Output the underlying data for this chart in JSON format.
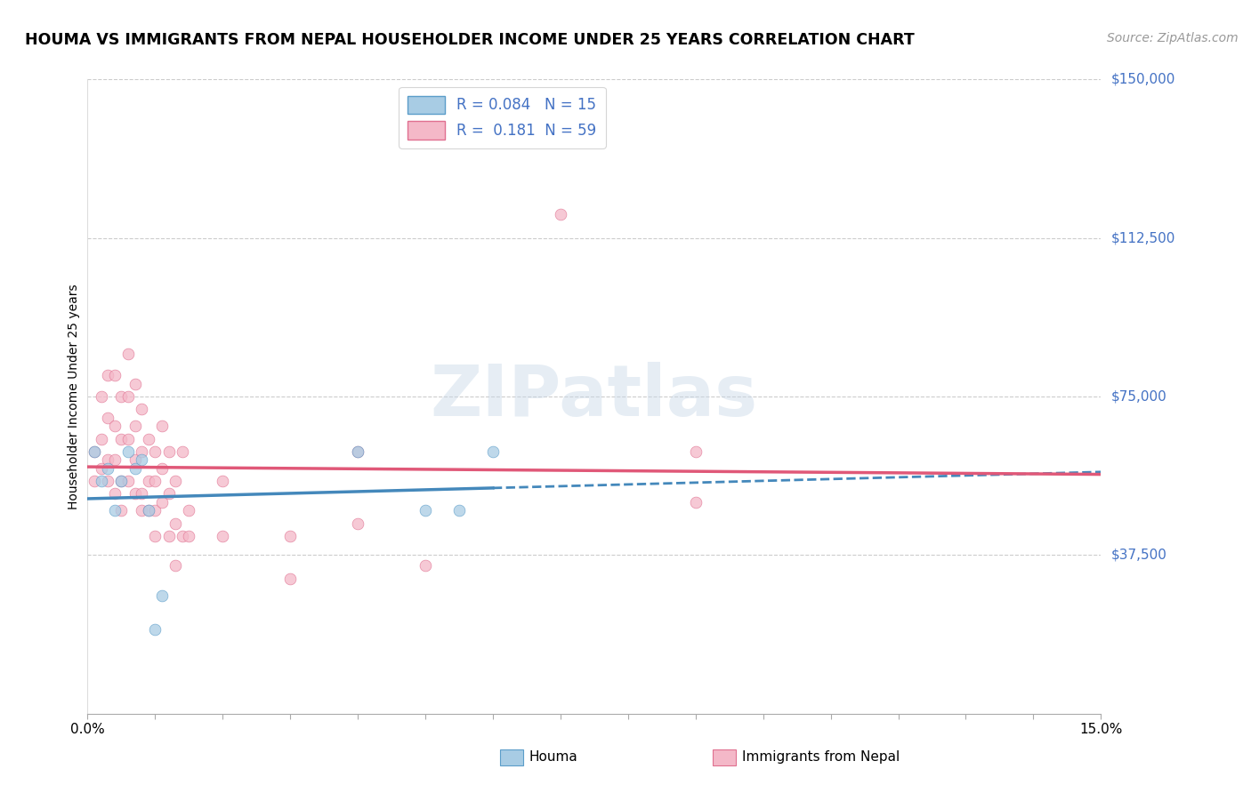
{
  "title": "HOUMA VS IMMIGRANTS FROM NEPAL HOUSEHOLDER INCOME UNDER 25 YEARS CORRELATION CHART",
  "source": "Source: ZipAtlas.com",
  "ylabel": "Householder Income Under 25 years",
  "xlabel_houma": "Houma",
  "xlabel_nepal": "Immigrants from Nepal",
  "xlim": [
    0.0,
    0.15
  ],
  "ylim": [
    0,
    150000
  ],
  "r_houma": 0.084,
  "n_houma": 15,
  "r_nepal": 0.181,
  "n_nepal": 59,
  "houma_color": "#a8cce4",
  "nepal_color": "#f4b8c8",
  "houma_edge_color": "#5b9dc9",
  "nepal_edge_color": "#e07090",
  "houma_line_color": "#4488bb",
  "nepal_line_color": "#e05878",
  "grid_color": "#cccccc",
  "ytick_vals": [
    37500,
    75000,
    112500,
    150000
  ],
  "ytick_labels": [
    "$37,500",
    "$75,000",
    "$112,500",
    "$150,000"
  ],
  "label_color": "#4472c4",
  "title_fontsize": 12.5,
  "axis_label_fontsize": 10,
  "tick_fontsize": 11,
  "legend_fontsize": 12,
  "source_fontsize": 10,
  "houma_x": [
    0.001,
    0.002,
    0.003,
    0.004,
    0.005,
    0.006,
    0.007,
    0.008,
    0.009,
    0.01,
    0.04,
    0.05,
    0.055,
    0.06,
    0.011
  ],
  "houma_y": [
    62000,
    55000,
    58000,
    48000,
    55000,
    62000,
    58000,
    60000,
    48000,
    20000,
    62000,
    48000,
    48000,
    62000,
    28000
  ],
  "nepal_x": [
    0.001,
    0.001,
    0.002,
    0.002,
    0.002,
    0.003,
    0.003,
    0.003,
    0.003,
    0.004,
    0.004,
    0.004,
    0.004,
    0.005,
    0.005,
    0.005,
    0.005,
    0.006,
    0.006,
    0.006,
    0.006,
    0.007,
    0.007,
    0.007,
    0.007,
    0.008,
    0.008,
    0.008,
    0.008,
    0.009,
    0.009,
    0.009,
    0.01,
    0.01,
    0.01,
    0.01,
    0.011,
    0.011,
    0.011,
    0.012,
    0.012,
    0.012,
    0.013,
    0.013,
    0.013,
    0.014,
    0.014,
    0.015,
    0.015,
    0.02,
    0.02,
    0.03,
    0.03,
    0.04,
    0.04,
    0.05,
    0.07,
    0.09,
    0.09
  ],
  "nepal_y": [
    62000,
    55000,
    75000,
    65000,
    58000,
    80000,
    70000,
    60000,
    55000,
    80000,
    68000,
    60000,
    52000,
    75000,
    65000,
    55000,
    48000,
    85000,
    75000,
    65000,
    55000,
    78000,
    68000,
    60000,
    52000,
    72000,
    62000,
    52000,
    48000,
    65000,
    55000,
    48000,
    62000,
    55000,
    48000,
    42000,
    68000,
    58000,
    50000,
    62000,
    52000,
    42000,
    55000,
    45000,
    35000,
    62000,
    42000,
    48000,
    42000,
    55000,
    42000,
    42000,
    32000,
    62000,
    45000,
    35000,
    118000,
    62000,
    50000
  ]
}
